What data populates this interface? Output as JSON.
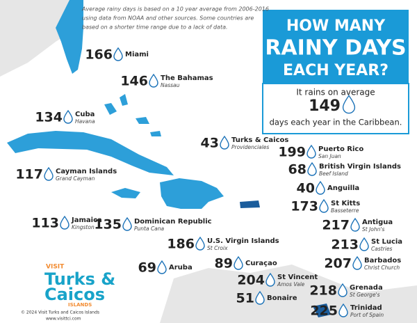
{
  "header": {
    "title": [
      "HOW MANY",
      "RAINY DAYS",
      "EACH YEAR?"
    ]
  },
  "note": [
    "Average rainy days is based on a 10 year average from 2006-2016",
    "using data from NOAA and other sources. Some countries are",
    "based on a shorter time range due to a lack of data."
  ],
  "average": {
    "before": "It rains on average",
    "value": 149,
    "after": "days each year in the Caribbean."
  },
  "locations": [
    {
      "value": 166,
      "name": "Miami"
    },
    {
      "value": 146,
      "name": "The Bahamas",
      "sub": "Nassau"
    },
    {
      "value": 134,
      "name": "Cuba",
      "sub": "Havana"
    },
    {
      "value": 43,
      "name": "Turks & Caicos",
      "sub": "Providenciales"
    },
    {
      "value": 117,
      "name": "Cayman Islands",
      "sub": "Grand Cayman"
    },
    {
      "value": 113,
      "name": "Jamaica",
      "sub": "Kingston"
    },
    {
      "value": 135,
      "name": "Dominican Republic",
      "sub": "Punta Cana"
    },
    {
      "value": 199,
      "name": "Puerto Rico",
      "sub": "San Juan"
    },
    {
      "value": 68,
      "name": "British Virgin Islands",
      "sub": "Beef Island"
    },
    {
      "value": 40,
      "name": "Anguilla"
    },
    {
      "value": 173,
      "name": "St Kitts",
      "sub": "Basseterre"
    },
    {
      "value": 217,
      "name": "Antigua",
      "sub": "St John's"
    },
    {
      "value": 213,
      "name": "St Lucia",
      "sub": "Castries"
    },
    {
      "value": 207,
      "name": "Barbados",
      "sub": "Christ Church"
    },
    {
      "value": 218,
      "name": "Grenada",
      "sub": "St George's"
    },
    {
      "value": 225,
      "name": "Trinidad",
      "sub": "Port of Spain"
    },
    {
      "value": 186,
      "name": "U.S. Virgin Islands",
      "sub": "St Croix"
    },
    {
      "value": 69,
      "name": "Aruba"
    },
    {
      "value": 89,
      "name": "Curaçao"
    },
    {
      "value": 204,
      "name": "St Vincent",
      "sub": "Amos Vale"
    },
    {
      "value": 51,
      "name": "Bonaire"
    }
  ],
  "logo": {
    "visit": "VISIT",
    "line1": "Turks &",
    "line2": "Caicos",
    "islands": "ISLANDS",
    "copyright": "© 2024 Visit Turks and Caicos Islands",
    "url": "www.visittci.com"
  }
}
